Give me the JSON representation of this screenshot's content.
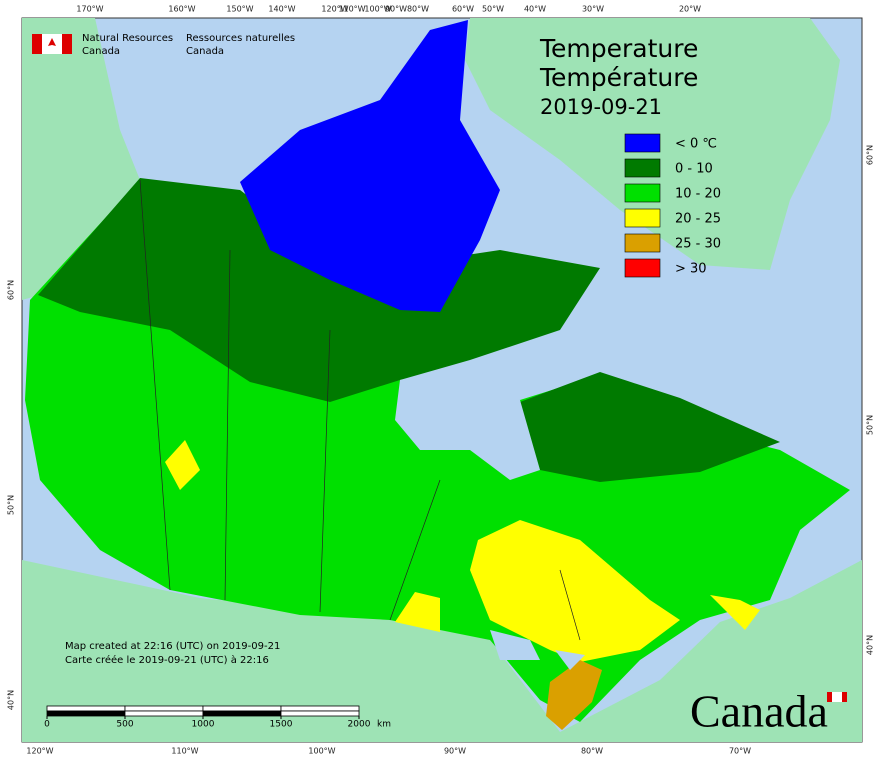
{
  "header": {
    "agency_en": [
      "Natural Resources",
      "Canada"
    ],
    "agency_fr": [
      "Ressources naturelles",
      "Canada"
    ]
  },
  "title": [
    "Temperature",
    "Température",
    "2019-09-21"
  ],
  "legend": [
    {
      "label": "< 0 ℃",
      "color": "#0000ff"
    },
    {
      "label": "0 - 10",
      "color": "#007a00"
    },
    {
      "label": "10 - 20",
      "color": "#00e000"
    },
    {
      "label": "20 - 25",
      "color": "#ffff00"
    },
    {
      "label": "25 - 30",
      "color": "#daa000"
    },
    {
      "label": "> 30",
      "color": "#ff0000"
    }
  ],
  "notes": [
    "Map created at 22:16 (UTC) on 2019-09-21",
    "Carte créée le 2019-09-21 (UTC) à 22:16"
  ],
  "scale_bar": {
    "ticks": [
      0,
      500,
      1000,
      1500,
      2000
    ],
    "unit": "km"
  },
  "graticule": {
    "top": [
      "170°W",
      "160°W",
      "150°W",
      "140°W",
      "120°W",
      "110°W",
      "100°W",
      "90°W",
      "80°W",
      "60°W",
      "50°W",
      "40°W",
      "30°W",
      "20°W"
    ],
    "bottom": [
      "120°W",
      "110°W",
      "100°W",
      "90°W",
      "80°W",
      "70°W"
    ],
    "left": [
      "60°N",
      "50°N",
      "40°N"
    ],
    "right": [
      "60°N",
      "50°N",
      "40°N"
    ]
  },
  "wordmark": "Canada"
}
